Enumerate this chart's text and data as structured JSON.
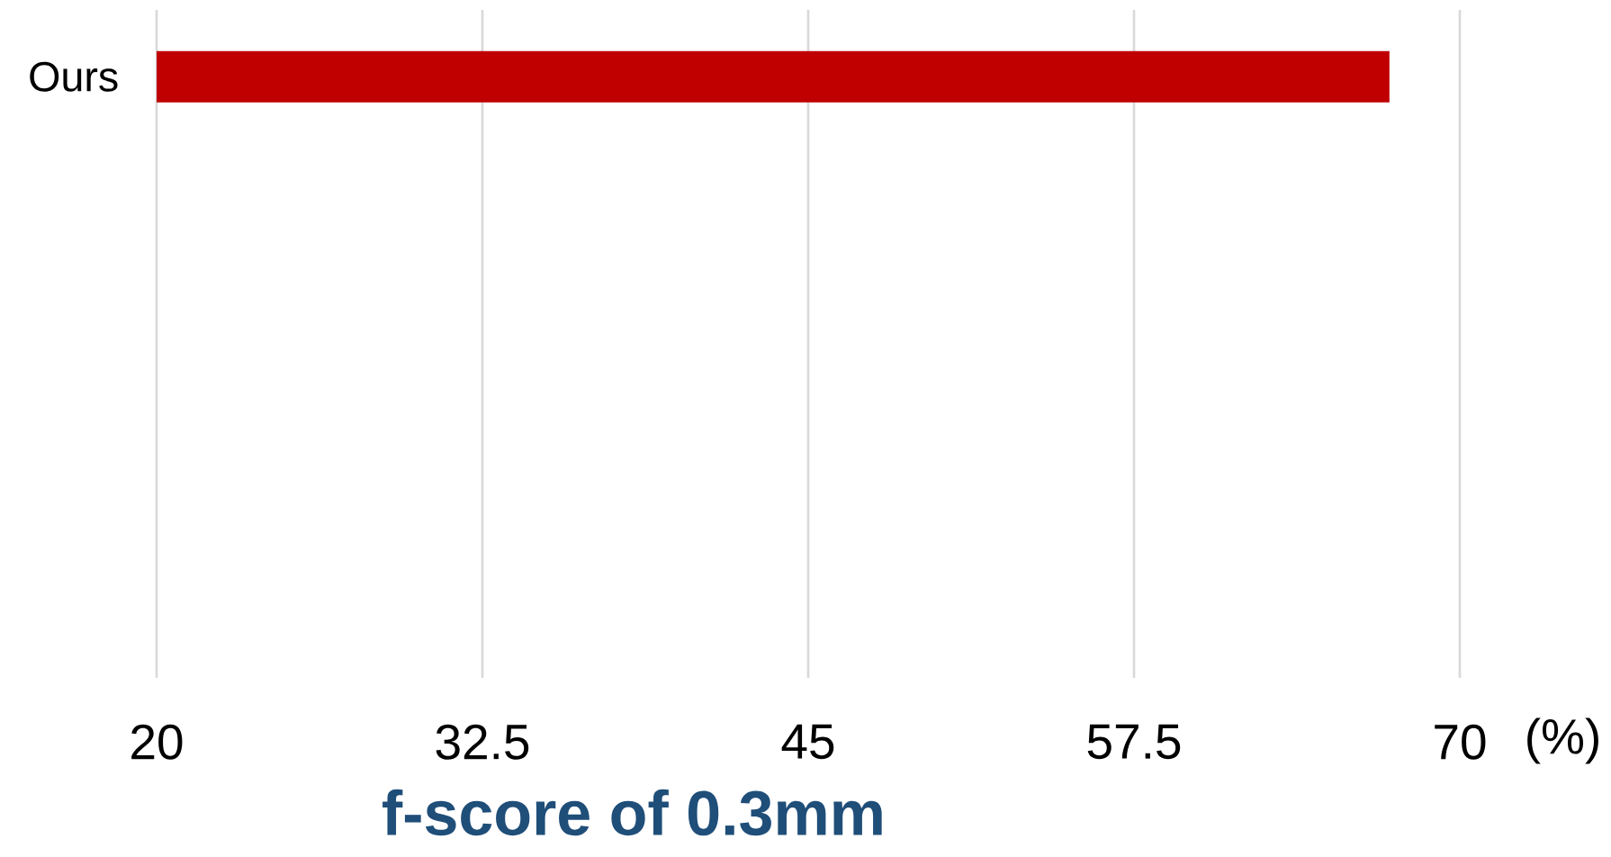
{
  "chart_data": {
    "type": "bar",
    "orientation": "horizontal",
    "categories": [
      "Ours"
    ],
    "values": [
      67.3
    ],
    "color": "#c00000",
    "xlabel": "f-score of 0.3mm",
    "annotations": [
      "(%)"
    ],
    "xlim": [
      20,
      70
    ],
    "xticks": [
      20,
      32.5,
      45,
      57.5,
      70
    ],
    "grid": "x"
  }
}
